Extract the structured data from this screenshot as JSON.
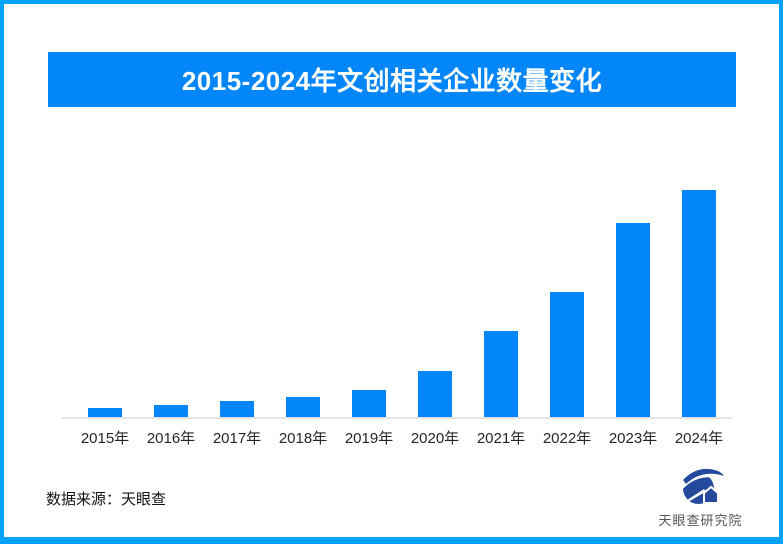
{
  "page": {
    "background": "#ffffff",
    "border_color": "#02a2fd"
  },
  "header": {
    "title": "2015-2024年文创相关企业数量变化",
    "banner_color": "#0486fb",
    "title_color": "#ffffff"
  },
  "chart_data": {
    "type": "bar",
    "title": "2015-2024年文创相关企业数量变化",
    "categories": [
      "2015年",
      "2016年",
      "2017年",
      "2018年",
      "2019年",
      "2020年",
      "2021年",
      "2022年",
      "2023年",
      "2024年"
    ],
    "values": [
      4.0,
      5.3,
      7.0,
      8.8,
      11.9,
      20.3,
      37.9,
      55.1,
      85.5,
      100
    ],
    "value_unit": "relative-height-percent-of-max",
    "note": "无纵轴刻度与数值标签；数值为按最高柱(2024年)=100估算的相对高度",
    "xlabel": "",
    "ylabel": "",
    "bar_color": "#0486fb",
    "axis_line_color": "#e4e4e4",
    "grid": false,
    "legend": false
  },
  "footer": {
    "source_label": "数据来源：天眼查",
    "logo_text": "天眼查研究院",
    "logo_color": "#24499d"
  }
}
